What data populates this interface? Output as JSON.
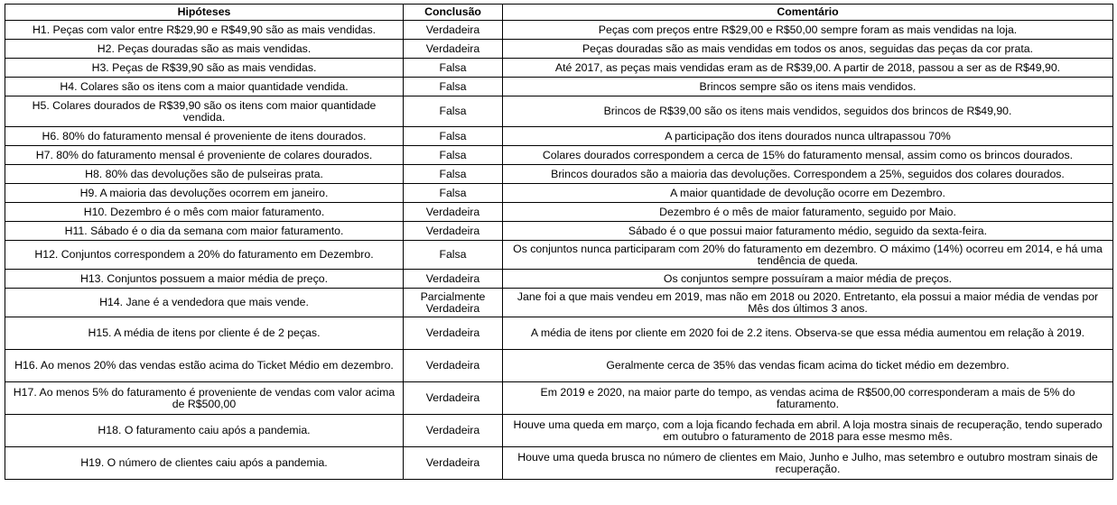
{
  "headers": [
    "Hipóteses",
    "Conclusão",
    "Comentário"
  ],
  "rows": [
    {
      "h": "H1. Peças com valor entre R$29,90 e R$49,90 são as mais vendidas.",
      "c": "Verdadeira",
      "m": "Peças com preços entre R$29,00 e R$50,00 sempre foram as mais vendidas na loja."
    },
    {
      "h": "H2. Peças douradas são as mais vendidas.",
      "c": "Verdadeira",
      "m": "Peças douradas são as mais vendidas em todos os anos, seguidas das peças da cor prata."
    },
    {
      "h": "H3. Peças de R$39,90 são as mais vendidas.",
      "c": "Falsa",
      "m": "Até 2017, as peças mais vendidas eram as de R$39,00. A partir de 2018, passou a ser as de R$49,90."
    },
    {
      "h": "H4. Colares são os itens com a maior quantidade vendida.",
      "c": "Falsa",
      "m": "Brincos sempre são os itens mais vendidos."
    },
    {
      "h": "H5. Colares dourados de R$39,90 são os itens com maior quantidade vendida.",
      "c": "Falsa",
      "m": "Brincos de R$39,00 são os itens mais vendidos, seguidos dos brincos de R$49,90."
    },
    {
      "h": "H6. 80% do faturamento mensal é proveniente de itens dourados.",
      "c": "Falsa",
      "m": "A participação dos itens dourados nunca ultrapassou 70%"
    },
    {
      "h": "H7. 80% do faturamento mensal é proveniente de colares dourados.",
      "c": "Falsa",
      "m": "Colares dourados correspondem a cerca de 15% do faturamento mensal, assim como os brincos dourados."
    },
    {
      "h": "H8. 80% das devoluções são de pulseiras prata.",
      "c": "Falsa",
      "m": "Brincos dourados são a maioria das devoluções. Correspondem a 25%, seguidos dos colares dourados."
    },
    {
      "h": "H9. A maioria das devoluções ocorrem em janeiro.",
      "c": "Falsa",
      "m": "A maior quantidade de devolução ocorre em Dezembro."
    },
    {
      "h": "H10. Dezembro é o mês com maior faturamento.",
      "c": "Verdadeira",
      "m": "Dezembro é o mês de maior faturamento, seguido por Maio."
    },
    {
      "h": "H11. Sábado é o dia da semana com maior faturamento.",
      "c": "Verdadeira",
      "m": "Sábado é o que possui maior faturamento médio, seguido da sexta-feira."
    },
    {
      "h": "H12. Conjuntos correspondem a 20% do faturamento em Dezembro.",
      "c": "Falsa",
      "m": "Os conjuntos nunca participaram com 20% do faturamento em dezembro. O máximo (14%) ocorreu em 2014, e há uma tendência de queda."
    },
    {
      "h": "H13. Conjuntos possuem a maior média de preço.",
      "c": "Verdadeira",
      "m": "Os conjuntos sempre possuíram a maior média de preços."
    },
    {
      "h": "H14. Jane é a vendedora que mais vende.",
      "c": "Parcialmente Verdadeira",
      "m": "Jane foi a que mais vendeu em 2019, mas não em 2018 ou 2020. Entretanto, ela possui a maior média de vendas por Mês dos últimos 3 anos."
    },
    {
      "h": "H15. A média de itens por cliente é de 2 peças.",
      "c": "Verdadeira",
      "m": "A média de itens por cliente em 2020 foi de 2.2 itens. Observa-se que essa média aumentou em relação à 2019."
    },
    {
      "h": "H16. Ao menos 20% das vendas estão acima do Ticket Médio em dezembro.",
      "c": "Verdadeira",
      "m": "Geralmente cerca de 35% das vendas ficam acima do ticket médio em dezembro."
    },
    {
      "h": "H17. Ao menos 5% do faturamento é proveniente de vendas com valor acima de R$500,00",
      "c": "Verdadeira",
      "m": "Em 2019 e 2020, na maior parte do tempo, as vendas acima de R$500,00 corresponderam a mais de 5% do faturamento."
    },
    {
      "h": "H18. O faturamento caiu após a pandemia.",
      "c": "Verdadeira",
      "m": "Houve uma queda em março, com a loja ficando fechada em abril. A loja mostra sinais de recuperação, tendo superado em outubro o faturamento de 2018 para esse mesmo mês."
    },
    {
      "h": "H19. O número de clientes caiu após a pandemia.",
      "c": "Verdadeira",
      "m": "Houve uma queda brusca no número de clientes em Maio, Junho e Julho, mas setembro e outubro mostram sinais de recuperação."
    }
  ]
}
